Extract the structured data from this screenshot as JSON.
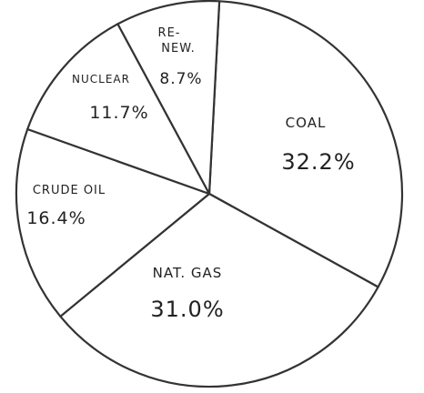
{
  "chart_data": {
    "type": "pie",
    "title": "",
    "slices": [
      {
        "label": "COAL",
        "value": 32.2,
        "value_label": "32.2%"
      },
      {
        "label": "NAT. GAS",
        "value": 31.0,
        "value_label": "31.0%"
      },
      {
        "label": "CRUDE OIL",
        "value": 16.4,
        "value_label": "16.4%"
      },
      {
        "label": "NUCLEAR",
        "value": 11.7,
        "value_label": "11.7%"
      },
      {
        "label": "RE-NEW.",
        "value": 8.7,
        "value_label": "8.7%"
      }
    ],
    "fill_color": "#ffffff",
    "line_color": "#333333",
    "legend": "none"
  }
}
